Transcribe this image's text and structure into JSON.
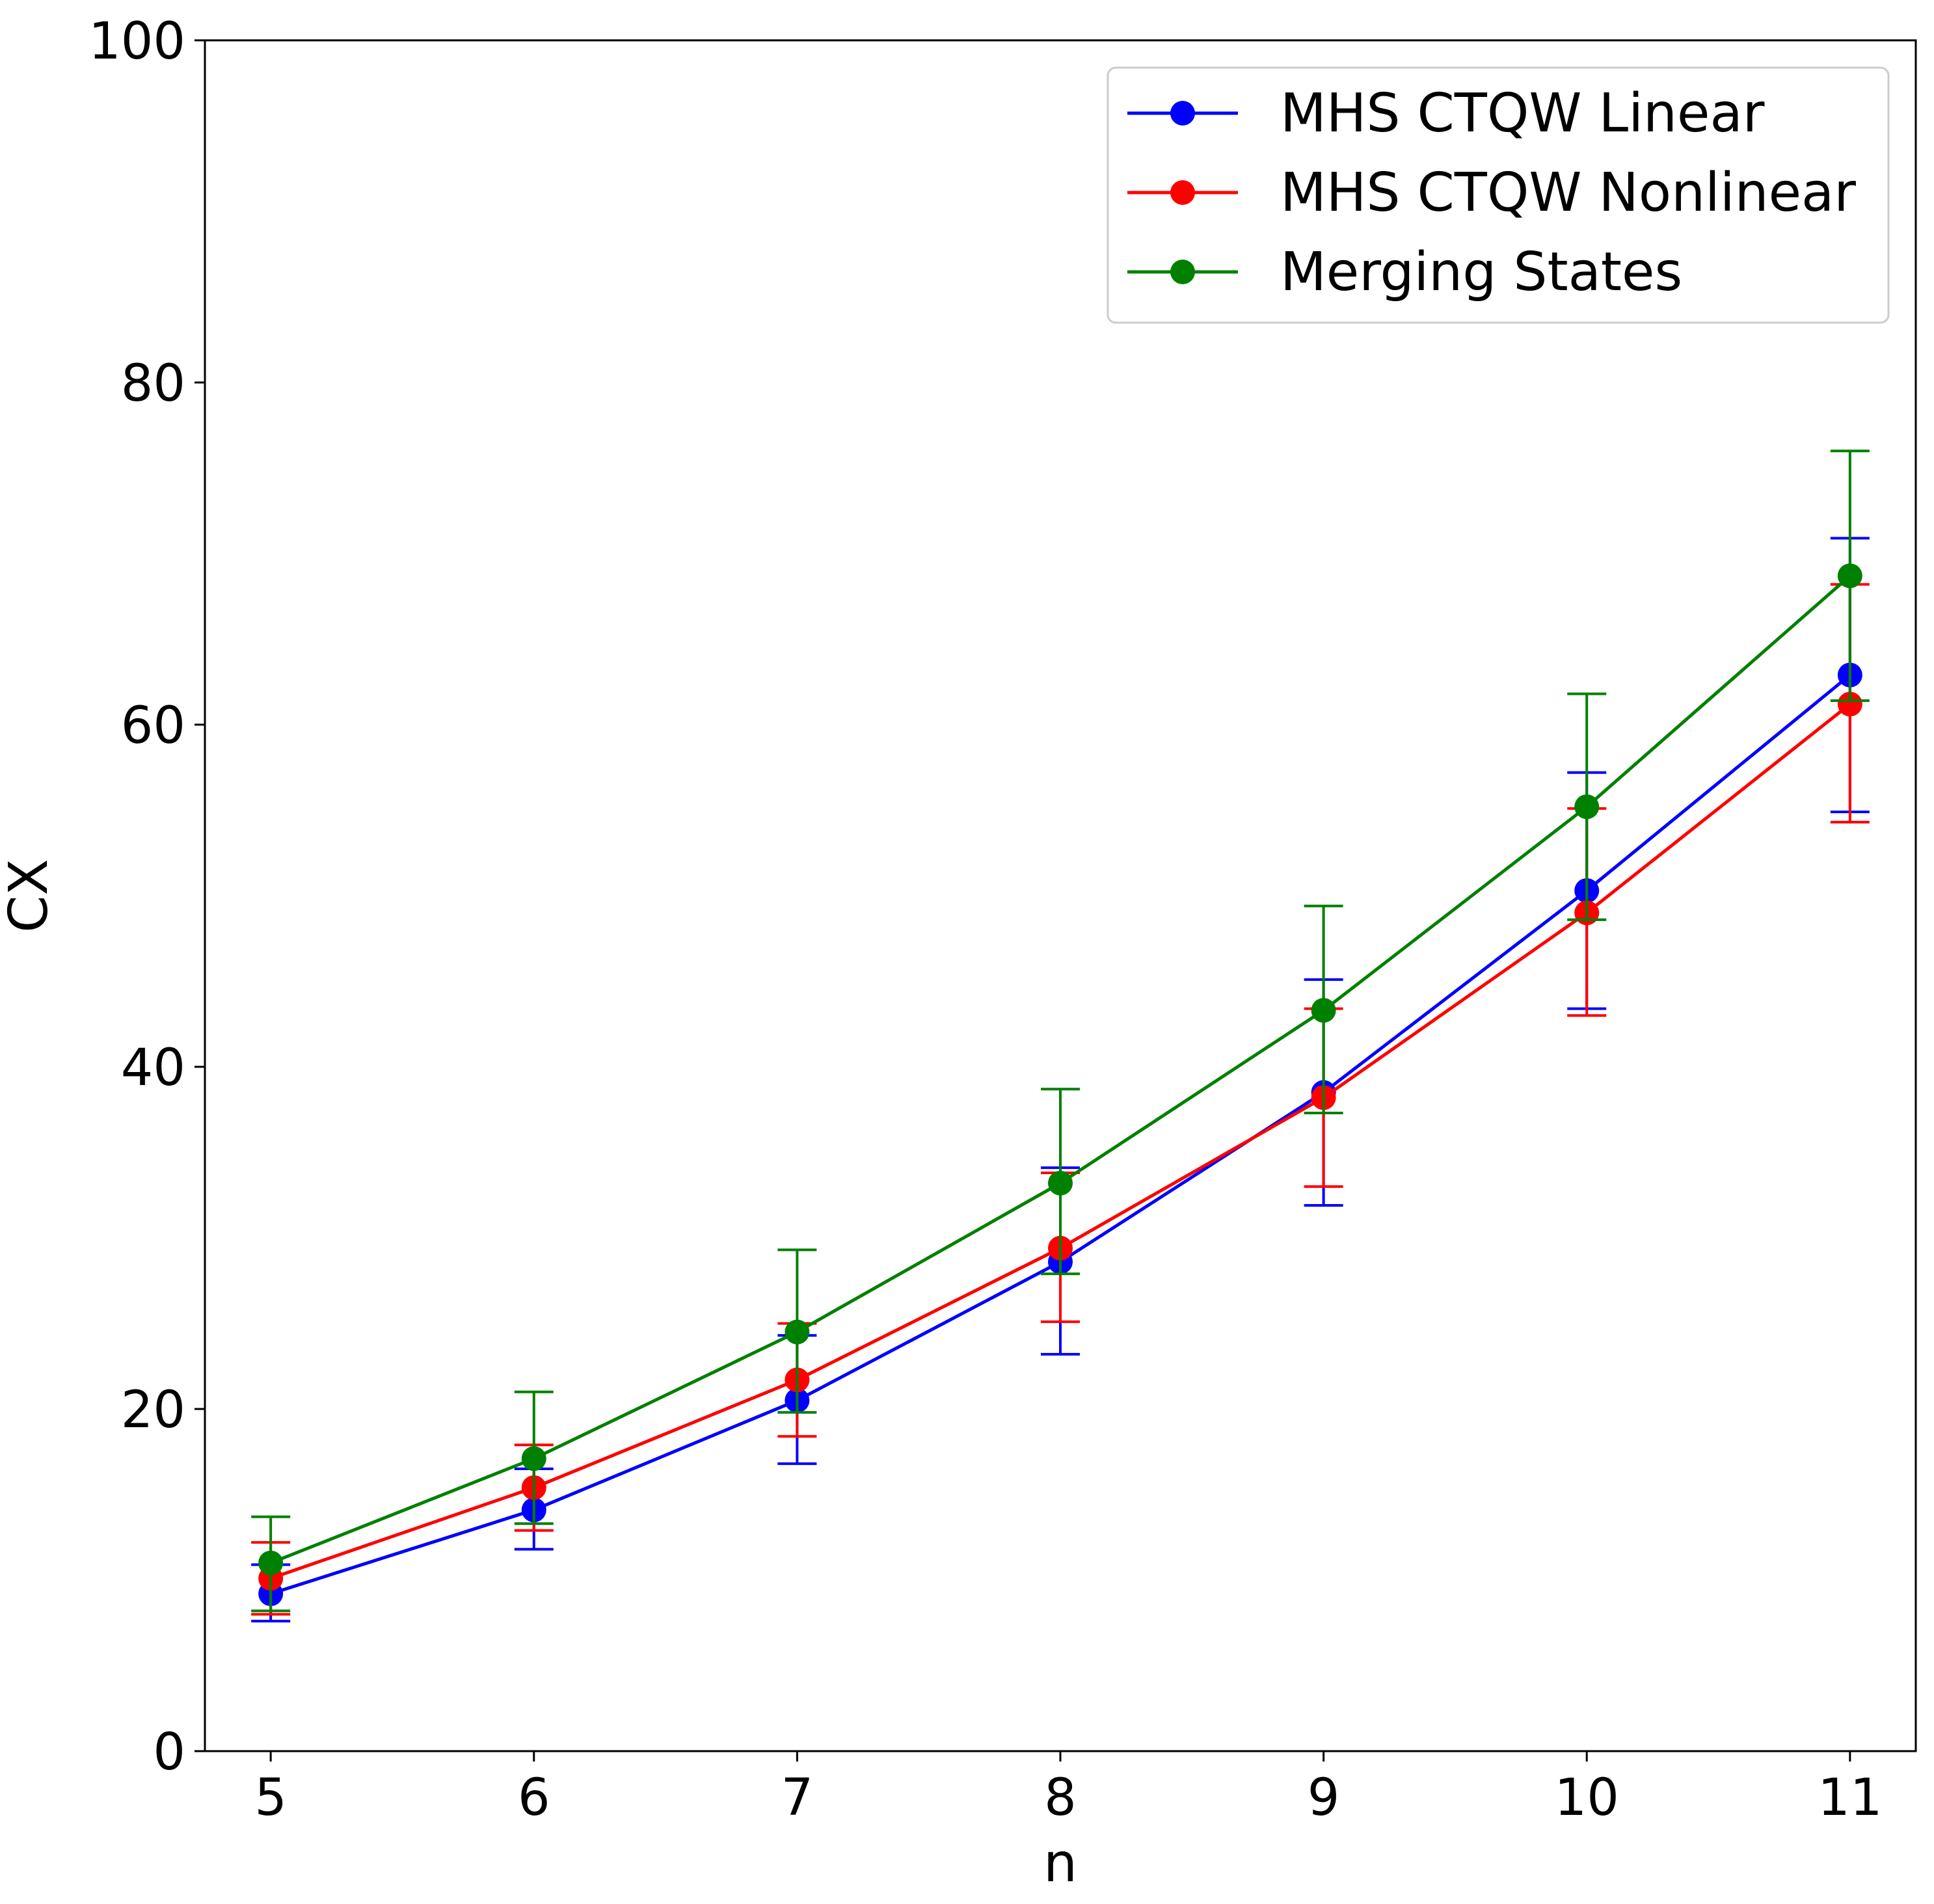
{
  "chart_data": {
    "type": "line",
    "title": "",
    "xlabel": "n",
    "ylabel": "CX",
    "xlim": [
      4.75,
      11.25
    ],
    "ylim": [
      0,
      100
    ],
    "x_ticks": [
      "5",
      "6",
      "7",
      "8",
      "9",
      "10",
      "11"
    ],
    "y_ticks": [
      "0",
      "20",
      "40",
      "60",
      "80",
      "100"
    ],
    "grid": false,
    "legend_position": "top-right",
    "x": [
      5,
      6,
      7,
      8,
      9,
      10,
      11
    ],
    "series": [
      {
        "name": "MHS CTQW Linear",
        "color": "#0000ff",
        "marker": "circle",
        "y": [
          9.2,
          14.1,
          20.5,
          28.6,
          38.5,
          50.3,
          62.9
        ],
        "y_lower": [
          7.6,
          11.8,
          16.8,
          23.2,
          31.9,
          43.4,
          54.9
        ],
        "y_upper": [
          10.9,
          16.5,
          24.3,
          34.1,
          45.1,
          57.2,
          70.9
        ]
      },
      {
        "name": "MHS CTQW Nonlinear",
        "color": "#ff0000",
        "marker": "circle",
        "y": [
          10.1,
          15.4,
          21.7,
          29.4,
          38.2,
          49.0,
          61.2
        ],
        "y_lower": [
          8.0,
          12.9,
          18.4,
          25.1,
          33.0,
          43.0,
          54.3
        ],
        "y_upper": [
          12.2,
          17.9,
          25.0,
          33.8,
          43.4,
          55.1,
          68.2
        ]
      },
      {
        "name": "Merging States",
        "color": "#008000",
        "marker": "circle",
        "y": [
          11.0,
          17.1,
          24.5,
          33.2,
          43.3,
          55.2,
          68.7
        ],
        "y_lower": [
          8.2,
          13.3,
          19.8,
          27.9,
          37.3,
          48.6,
          61.4
        ],
        "y_upper": [
          13.7,
          21.0,
          29.3,
          38.7,
          49.4,
          61.8,
          76.0
        ]
      }
    ]
  }
}
